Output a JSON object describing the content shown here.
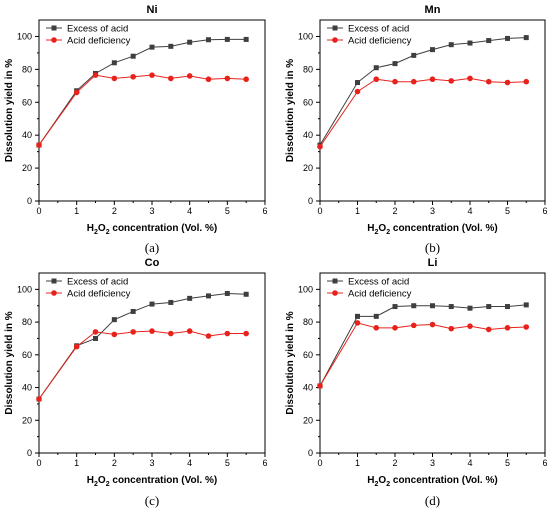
{
  "figure": {
    "xlabel_main": "H",
    "xlabel_sub": "2",
    "xlabel_main2": "O",
    "xlabel_rest": " concentration (Vol. %)",
    "ylabel": "Dissolution yield in %",
    "colors": {
      "excess": "#3f3f3f",
      "deficiency": "#e8221b"
    }
  },
  "chart_data": [
    {
      "type": "line",
      "title": "Ni",
      "caption": "(a)",
      "xlim": [
        0,
        6
      ],
      "ylim": [
        0,
        110
      ],
      "xticks": [
        0,
        1,
        2,
        3,
        4,
        5,
        6
      ],
      "yticks": [
        0,
        20,
        40,
        60,
        80,
        100
      ],
      "legend_position": "top-left",
      "x": [
        0,
        1,
        1.5,
        2,
        2.5,
        3,
        3.5,
        4,
        4.5,
        5,
        5.5
      ],
      "series": [
        {
          "name": "Excess of acid",
          "marker": "square",
          "color": "#3f3f3f",
          "values": [
            34,
            67,
            77.5,
            84,
            88,
            93.5,
            94,
            96.5,
            98,
            98.2,
            98.2
          ]
        },
        {
          "name": "Acid deficiency",
          "marker": "circle",
          "color": "#e8221b",
          "values": [
            34,
            66,
            76.5,
            74.5,
            75.5,
            76.5,
            74.5,
            76,
            74,
            74.5,
            74
          ]
        }
      ]
    },
    {
      "type": "line",
      "title": "Mn",
      "caption": "(b)",
      "xlim": [
        0,
        6
      ],
      "ylim": [
        0,
        110
      ],
      "xticks": [
        0,
        1,
        2,
        3,
        4,
        5,
        6
      ],
      "yticks": [
        0,
        20,
        40,
        60,
        80,
        100
      ],
      "legend_position": "top-left",
      "x": [
        0,
        1,
        1.5,
        2,
        2.5,
        3,
        3.5,
        4,
        4.5,
        5,
        5.5
      ],
      "series": [
        {
          "name": "Excess of acid",
          "marker": "square",
          "color": "#3f3f3f",
          "values": [
            34,
            72,
            81,
            83.5,
            88.5,
            92,
            95,
            96,
            97.5,
            98.8,
            99.3
          ]
        },
        {
          "name": "Acid deficiency",
          "marker": "circle",
          "color": "#e8221b",
          "values": [
            33,
            66.5,
            74,
            72.5,
            72.5,
            74,
            73,
            74.5,
            72.5,
            72,
            72.5
          ]
        }
      ]
    },
    {
      "type": "line",
      "title": "Co",
      "caption": "(c)",
      "xlim": [
        0,
        6
      ],
      "ylim": [
        0,
        110
      ],
      "xticks": [
        0,
        1,
        2,
        3,
        4,
        5,
        6
      ],
      "yticks": [
        0,
        20,
        40,
        60,
        80,
        100
      ],
      "legend_position": "top-left",
      "x": [
        0,
        1,
        1.5,
        2,
        2.5,
        3,
        3.5,
        4,
        4.5,
        5,
        5.5
      ],
      "series": [
        {
          "name": "Excess of acid",
          "marker": "square",
          "color": "#3f3f3f",
          "values": [
            33,
            65.5,
            70,
            81.5,
            86.5,
            91,
            92,
            94.5,
            96,
            97.5,
            97
          ]
        },
        {
          "name": "Acid deficiency",
          "marker": "circle",
          "color": "#e8221b",
          "values": [
            33,
            65,
            74,
            72.5,
            74,
            74.5,
            73,
            74.5,
            71.5,
            73,
            73
          ]
        }
      ]
    },
    {
      "type": "line",
      "title": "Li",
      "caption": "(d)",
      "xlim": [
        0,
        6
      ],
      "ylim": [
        0,
        110
      ],
      "xticks": [
        0,
        1,
        2,
        3,
        4,
        5,
        6
      ],
      "yticks": [
        0,
        20,
        40,
        60,
        80,
        100
      ],
      "legend_position": "top-left",
      "x": [
        0,
        1,
        1.5,
        2,
        2.5,
        3,
        3.5,
        4,
        4.5,
        5,
        5.5
      ],
      "series": [
        {
          "name": "Excess of acid",
          "marker": "square",
          "color": "#3f3f3f",
          "values": [
            41,
            83.5,
            83.5,
            89.5,
            90,
            90,
            89.5,
            88.5,
            89.5,
            89.5,
            90.5
          ]
        },
        {
          "name": "Acid deficiency",
          "marker": "circle",
          "color": "#e8221b",
          "values": [
            41,
            79.5,
            76.5,
            76.5,
            78,
            78.5,
            76,
            77.5,
            75.5,
            76.5,
            77
          ]
        }
      ]
    }
  ]
}
